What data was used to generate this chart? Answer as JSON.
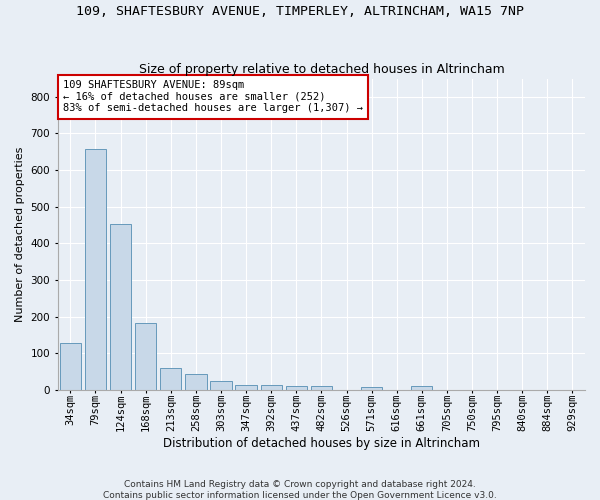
{
  "title_line1": "109, SHAFTESBURY AVENUE, TIMPERLEY, ALTRINCHAM, WA15 7NP",
  "title_line2": "Size of property relative to detached houses in Altrincham",
  "xlabel": "Distribution of detached houses by size in Altrincham",
  "ylabel": "Number of detached properties",
  "bar_labels": [
    "34sqm",
    "79sqm",
    "124sqm",
    "168sqm",
    "213sqm",
    "258sqm",
    "303sqm",
    "347sqm",
    "392sqm",
    "437sqm",
    "482sqm",
    "526sqm",
    "571sqm",
    "616sqm",
    "661sqm",
    "705sqm",
    "750sqm",
    "795sqm",
    "840sqm",
    "884sqm",
    "929sqm"
  ],
  "bar_values": [
    128,
    658,
    452,
    183,
    60,
    43,
    25,
    12,
    13,
    11,
    9,
    0,
    8,
    0,
    9,
    0,
    0,
    0,
    0,
    0,
    0
  ],
  "bar_color": "#c8d8e8",
  "bar_edge_color": "#6699bb",
  "ylim": [
    0,
    850
  ],
  "yticks": [
    0,
    100,
    200,
    300,
    400,
    500,
    600,
    700,
    800
  ],
  "annotation_line1": "109 SHAFTESBURY AVENUE: 89sqm",
  "annotation_line2": "← 16% of detached houses are smaller (252)",
  "annotation_line3": "83% of semi-detached houses are larger (1,307) →",
  "annotation_box_color": "#ffffff",
  "annotation_box_edge": "#cc0000",
  "footer_line1": "Contains HM Land Registry data © Crown copyright and database right 2024.",
  "footer_line2": "Contains public sector information licensed under the Open Government Licence v3.0.",
  "bg_color": "#e8eef5",
  "plot_bg_color": "#e8eef5",
  "grid_color": "#ffffff",
  "title1_fontsize": 9.5,
  "title2_fontsize": 9,
  "xlabel_fontsize": 8.5,
  "ylabel_fontsize": 8,
  "tick_fontsize": 7.5,
  "annotation_fontsize": 7.5,
  "footer_fontsize": 6.5
}
